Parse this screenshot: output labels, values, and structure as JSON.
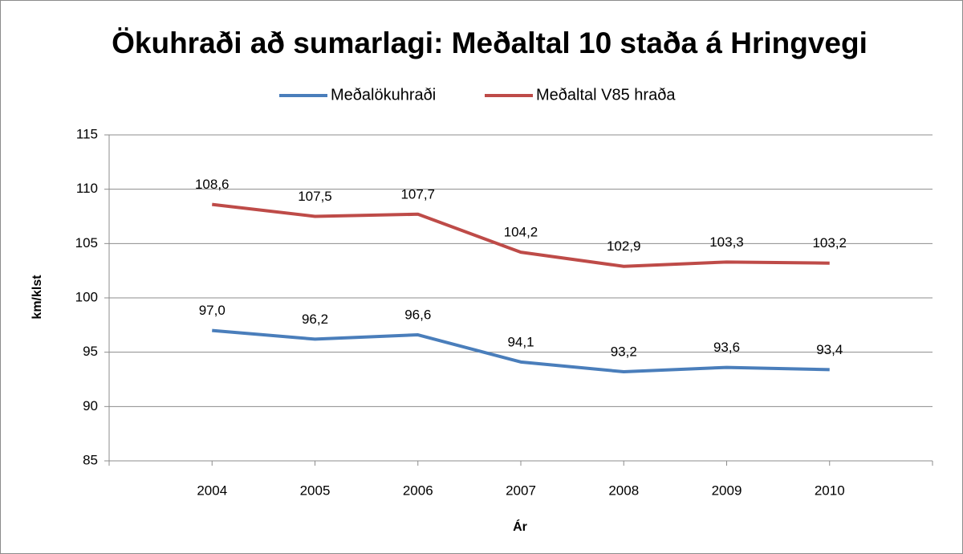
{
  "chart_data": {
    "type": "line",
    "title": "Ökuhraði að sumarlagi: Meðaltal 10 staða á Hringvegi",
    "x_label": "Ár",
    "y_label": "km/klst",
    "categories": [
      "2004",
      "2005",
      "2006",
      "2007",
      "2008",
      "2009",
      "2010"
    ],
    "series": [
      {
        "name": "Meðalökuhraði",
        "color": "#4a7ebb",
        "values": [
          97.0,
          96.2,
          96.6,
          94.1,
          93.2,
          93.6,
          93.4
        ],
        "value_labels": [
          "97,0",
          "96,2",
          "96,6",
          "94,1",
          "93,2",
          "93,6",
          "93,4"
        ]
      },
      {
        "name": "Meðaltal V85 hraða",
        "color": "#be4b48",
        "values": [
          108.6,
          107.5,
          107.7,
          104.2,
          102.9,
          103.3,
          103.2
        ],
        "value_labels": [
          "108,6",
          "107,5",
          "107,7",
          "104,2",
          "102,9",
          "103,3",
          "103,2"
        ]
      }
    ],
    "ylim": [
      85,
      115
    ],
    "yticks": [
      85,
      90,
      95,
      100,
      105,
      110,
      115
    ],
    "grid": true,
    "legend": "top"
  }
}
